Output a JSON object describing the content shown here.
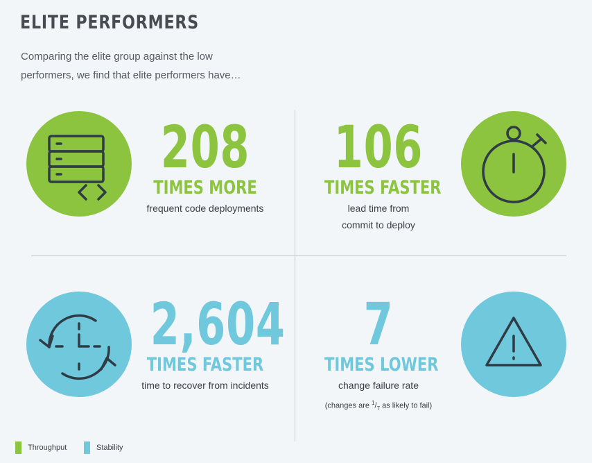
{
  "header": {
    "title": "ELITE PERFORMERS",
    "subtitle": "Comparing the elite group against the low performers, we find that elite performers have…"
  },
  "stats": [
    {
      "number": "208",
      "unit": "TIMES MORE",
      "desc": "frequent code deployments",
      "category": "Throughput",
      "icon": "server-code-icon"
    },
    {
      "number": "106",
      "unit": "TIMES FASTER",
      "desc_lines": [
        "lead time from",
        "commit to deploy"
      ],
      "category": "Throughput",
      "icon": "stopwatch-icon"
    },
    {
      "number": "2,604",
      "unit": "TIMES FASTER",
      "desc": "time to recover from incidents",
      "category": "Stability",
      "icon": "clock-recovery-icon"
    },
    {
      "number": "7",
      "unit": "TIMES LOWER",
      "desc": "change failure rate",
      "note_before": "(changes are",
      "note_num": "1",
      "note_den": "7",
      "note_after": "as likely to fail)",
      "category": "Stability",
      "icon": "warning-icon"
    }
  ],
  "legend": [
    {
      "label": "Throughput",
      "color": "#8cc43f"
    },
    {
      "label": "Stability",
      "color": "#6fc8dc"
    }
  ],
  "colors": {
    "throughput": "#8cc43f",
    "stability": "#6fc8dc",
    "icon_stroke": "#2f3b45"
  }
}
